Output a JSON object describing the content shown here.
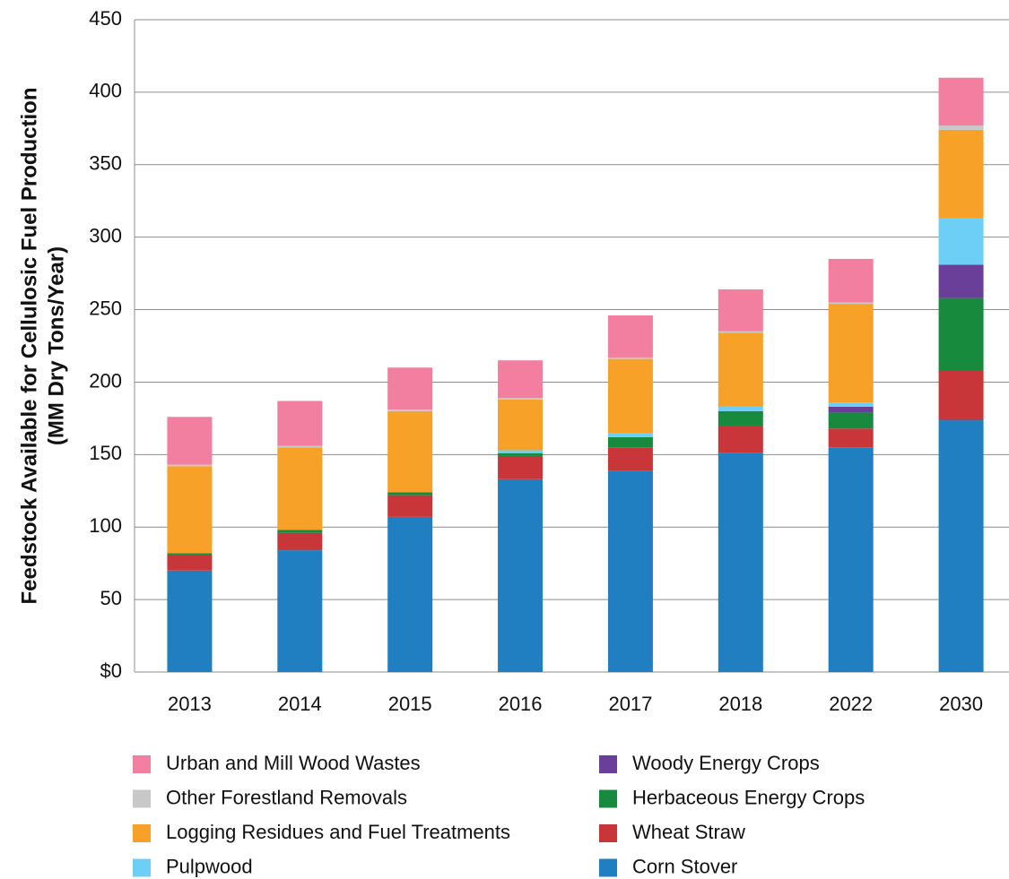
{
  "chart_data": {
    "type": "stacked_bar",
    "ylabel": [
      "Feedstock Available for Cellulosic Fuel Production",
      "(MM Dry Tons/Year)"
    ],
    "categories": [
      "2013",
      "2014",
      "2015",
      "2016",
      "2017",
      "2018",
      "2022",
      "2030"
    ],
    "series": [
      {
        "name": "Corn Stover",
        "color": "#1f7fc0",
        "values": [
          70,
          84,
          107,
          133,
          139,
          151,
          155,
          174
        ]
      },
      {
        "name": "Wheat Straw",
        "color": "#c8363a",
        "values": [
          11,
          12,
          15,
          16,
          16,
          19,
          13,
          34
        ]
      },
      {
        "name": "Herbaceous Energy Crops",
        "color": "#178a3e",
        "values": [
          1,
          2,
          2,
          2,
          7,
          10,
          11,
          50
        ]
      },
      {
        "name": "Woody Energy Crops",
        "color": "#6a3f9a",
        "values": [
          0,
          0,
          0,
          0,
          0,
          0,
          4,
          23
        ]
      },
      {
        "name": "Pulpwood",
        "color": "#6ecff6",
        "values": [
          0,
          0,
          0,
          2,
          3,
          3,
          3,
          32
        ]
      },
      {
        "name": "Logging Residues and Fuel Treatments",
        "color": "#f7a128",
        "values": [
          60,
          57,
          56,
          35,
          51,
          51,
          68,
          61
        ]
      },
      {
        "name": "Other Forestland Removals",
        "color": "#c8c8c8",
        "values": [
          1,
          1,
          1,
          1,
          1,
          1,
          1,
          3
        ]
      },
      {
        "name": "Urban and Mill Wood Wastes",
        "color": "#f27ea0",
        "values": [
          33,
          31,
          29,
          26,
          29,
          29,
          30,
          33
        ]
      }
    ],
    "ylim": [
      0,
      450
    ],
    "yticks": [
      {
        "value": 0,
        "label": "$0"
      },
      50,
      100,
      150,
      200,
      250,
      300,
      350,
      400,
      450
    ],
    "grid": true
  }
}
